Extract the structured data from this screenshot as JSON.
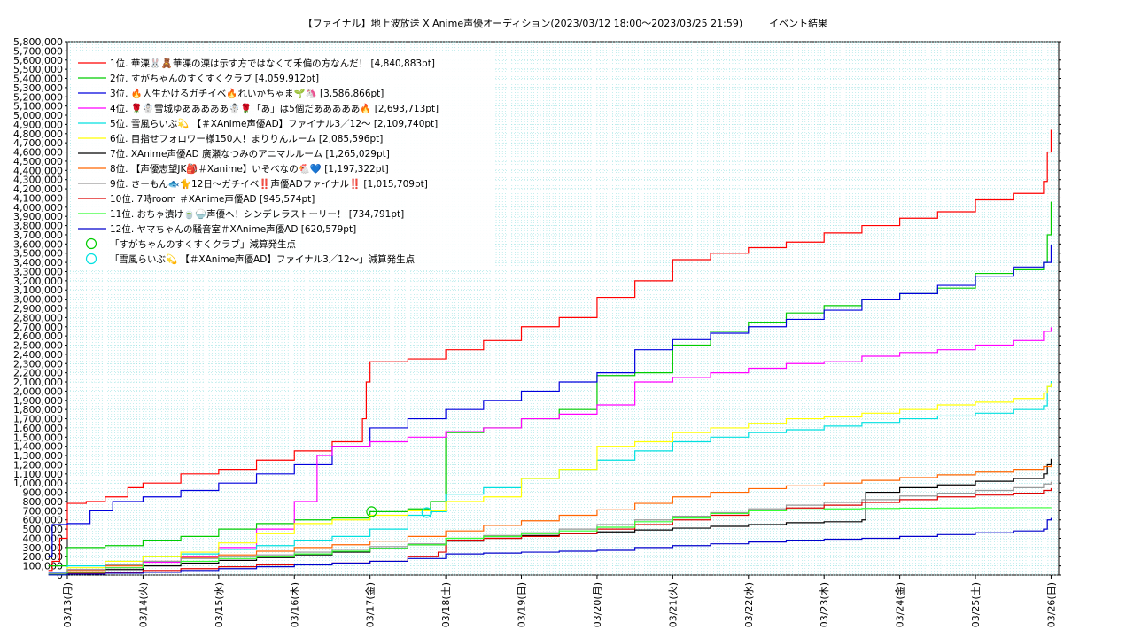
{
  "header": {
    "title": "【ファイナル】地上波放送 X Anime声優オーディション(2023/03/12 18:00〜2023/03/25 21:59)",
    "subtitle": "イベント結果"
  },
  "chart_data": {
    "type": "line",
    "title": "【ファイナル】地上波放送 X Anime声優オーディション(2023/03/12 18:00〜2023/03/25 21:59)",
    "subtitle": "イベント結果",
    "xlabel": "",
    "ylabel": "",
    "x_range": [
      0,
      13.1
    ],
    "ylim": [
      0,
      5800000
    ],
    "y_ticks": [
      0,
      100000,
      200000,
      300000,
      400000,
      500000,
      600000,
      700000,
      800000,
      900000,
      1000000,
      1100000,
      1200000,
      1300000,
      1400000,
      1500000,
      1600000,
      1700000,
      1800000,
      1900000,
      2000000,
      2100000,
      2200000,
      2300000,
      2400000,
      2500000,
      2600000,
      2700000,
      2800000,
      2900000,
      3000000,
      3100000,
      3200000,
      3300000,
      3400000,
      3500000,
      3600000,
      3700000,
      3800000,
      3900000,
      4000000,
      4100000,
      4200000,
      4300000,
      4400000,
      4500000,
      4600000,
      4700000,
      4800000,
      4900000,
      5000000,
      5100000,
      5200000,
      5300000,
      5400000,
      5500000,
      5600000,
      5700000,
      5800000
    ],
    "y_tick_labels": [
      "0",
      "100,000",
      "200,000",
      "300,000",
      "400,000",
      "500,000",
      "600,000",
      "700,000",
      "800,000",
      "900,000",
      "1,000,000",
      "1,100,000",
      "1,200,000",
      "1,300,000",
      "1,400,000",
      "1,500,000",
      "1,600,000",
      "1,700,000",
      "1,800,000",
      "1,900,000",
      "2,000,000",
      "2,100,000",
      "2,200,000",
      "2,300,000",
      "2,400,000",
      "2,500,000",
      "2,600,000",
      "2,700,000",
      "2,800,000",
      "2,900,000",
      "3,000,000",
      "3,100,000",
      "3,200,000",
      "3,300,000",
      "3,400,000",
      "3,500,000",
      "3,600,000",
      "3,700,000",
      "3,800,000",
      "3,900,000",
      "4,000,000",
      "4,100,000",
      "4,200,000",
      "4,300,000",
      "4,400,000",
      "4,500,000",
      "4,600,000",
      "4,700,000",
      "4,800,000",
      "4,900,000",
      "5,000,000",
      "5,100,000",
      "5,200,000",
      "5,300,000",
      "5,400,000",
      "5,500,000",
      "5,600,000",
      "5,700,000",
      "5,800,000"
    ],
    "x_tick_labels": [
      "03/13(月)",
      "03/14(火)",
      "03/15(水)",
      "03/16(木)",
      "03/17(金)",
      "03/18(土)",
      "03/19(日)",
      "03/20(月)",
      "03/21(火)",
      "03/22(水)",
      "03/23(木)",
      "03/24(金)",
      "03/25(土)",
      "03/26(日)"
    ],
    "x_tick_values": [
      0,
      1,
      2,
      3,
      4,
      5,
      6,
      7,
      8,
      9,
      10,
      11,
      12,
      13
    ],
    "grid": true,
    "legend_position": "top-left",
    "series": [
      {
        "name": "1位. 華溧🐰🧸華溧の溧は示す方ではなくて禾偏の方なんだ！ [4,840,883pt]",
        "color": "#ff0000",
        "x": [
          -0.25,
          -0.2,
          -0.1,
          0,
          0.1,
          0.25,
          0.5,
          0.8,
          1,
          1.5,
          2,
          2.5,
          3,
          3.5,
          3.9,
          3.95,
          4,
          4.5,
          5,
          5.5,
          6,
          6.5,
          7,
          7.5,
          8,
          8.5,
          9,
          9.5,
          10,
          10.5,
          11,
          11.5,
          12,
          12.5,
          12.9,
          12.95,
          13
        ],
        "y": [
          50000,
          150000,
          400000,
          780000,
          780000,
          800000,
          850000,
          950000,
          1000000,
          1100000,
          1150000,
          1250000,
          1350000,
          1450000,
          1700000,
          2100000,
          2320000,
          2350000,
          2450000,
          2550000,
          2700000,
          2800000,
          3020000,
          3200000,
          3430000,
          3500000,
          3560000,
          3620000,
          3720000,
          3800000,
          3880000,
          3950000,
          4080000,
          4150000,
          4280000,
          4600000,
          4840883
        ]
      },
      {
        "name": "2位. すがちゃんのすくすくクラブ [4,059,912pt]",
        "color": "#00cc00",
        "x": [
          -0.25,
          0,
          0.5,
          1,
          1.5,
          2,
          2.5,
          3,
          3.5,
          4,
          4.5,
          4.8,
          5,
          5.5,
          6,
          6.5,
          7,
          7.5,
          8,
          8.5,
          9,
          9.5,
          10,
          10.5,
          11,
          11.5,
          12,
          12.5,
          12.9,
          12.95,
          13
        ],
        "y": [
          100000,
          300000,
          320000,
          380000,
          420000,
          500000,
          560000,
          600000,
          620000,
          690000,
          720000,
          800000,
          1550000,
          1600000,
          1700000,
          1800000,
          2170000,
          2200000,
          2500000,
          2650000,
          2750000,
          2850000,
          2930000,
          3000000,
          3060000,
          3120000,
          3280000,
          3320000,
          3400000,
          3700000,
          4059912
        ]
      },
      {
        "name": "3位. 🔥人生かけるガチイベ🔥れいかちゃま🌱🦄 [3,586,866pt]",
        "color": "#0000dd",
        "x": [
          -0.25,
          -0.2,
          0,
          0.3,
          0.6,
          1,
          1.5,
          2,
          2.5,
          3,
          3.5,
          4,
          4.5,
          5,
          5.5,
          6,
          6.5,
          7,
          7.5,
          8,
          8.5,
          9,
          9.5,
          10,
          10.5,
          11,
          11.5,
          12,
          12.5,
          12.9,
          13
        ],
        "y": [
          200000,
          550000,
          560000,
          700000,
          800000,
          850000,
          920000,
          1000000,
          1100000,
          1200000,
          1400000,
          1600000,
          1700000,
          1800000,
          1900000,
          2000000,
          2100000,
          2200000,
          2450000,
          2560000,
          2630000,
          2700000,
          2780000,
          2880000,
          3000000,
          3060000,
          3150000,
          3250000,
          3350000,
          3400000,
          3586866
        ]
      },
      {
        "name": "4位. 🌹☃️雪城ゆあああああ☃️🌹「あ」は5個だあああああ🔥 [2,693,713pt]",
        "color": "#ff00ff",
        "x": [
          -0.25,
          0,
          0.5,
          1,
          1.5,
          2,
          2.5,
          3,
          3.3,
          3.5,
          4,
          4.5,
          5,
          5.5,
          6,
          6.5,
          7,
          7.5,
          8,
          8.5,
          9,
          9.5,
          10,
          10.5,
          11,
          11.5,
          12,
          12.5,
          12.9,
          13
        ],
        "y": [
          30000,
          60000,
          80000,
          140000,
          200000,
          300000,
          500000,
          800000,
          1300000,
          1400000,
          1450000,
          1500000,
          1560000,
          1600000,
          1700000,
          1750000,
          1850000,
          2100000,
          2150000,
          2200000,
          2250000,
          2300000,
          2320000,
          2380000,
          2420000,
          2450000,
          2500000,
          2550000,
          2650000,
          2693713
        ]
      },
      {
        "name": "5位. 雪風らいぶ💫 【＃XAnime声優AD】ファイナル3／12～ [2,109,740pt]",
        "color": "#00e0e0",
        "x": [
          -0.25,
          0,
          0.5,
          1,
          1.5,
          2,
          2.5,
          3,
          3.5,
          4,
          4.5,
          4.8,
          5,
          5.5,
          6,
          6.5,
          7,
          7.5,
          8,
          8.5,
          9,
          9.5,
          10,
          10.5,
          11,
          11.5,
          12,
          12.5,
          12.9,
          12.95,
          13
        ],
        "y": [
          20000,
          100000,
          150000,
          200000,
          230000,
          280000,
          320000,
          380000,
          420000,
          500000,
          650000,
          690000,
          880000,
          950000,
          1050000,
          1150000,
          1250000,
          1350000,
          1450000,
          1500000,
          1550000,
          1580000,
          1620000,
          1660000,
          1700000,
          1730000,
          1760000,
          1800000,
          1840000,
          2050000,
          2109740
        ]
      },
      {
        "name": "6位. 目指せフォロワー様150人！まりりんルーム [2,085,596pt]",
        "color": "#ffff00",
        "x": [
          -0.25,
          0,
          0.5,
          1,
          1.5,
          2,
          2.5,
          3,
          3.5,
          4,
          4.5,
          5,
          5.5,
          6,
          6.5,
          7,
          7.5,
          8,
          8.5,
          9,
          9.5,
          10,
          10.5,
          11,
          11.5,
          12,
          12.5,
          12.9,
          12.95,
          13
        ],
        "y": [
          10000,
          80000,
          150000,
          200000,
          250000,
          350000,
          450000,
          560000,
          600000,
          650000,
          700000,
          800000,
          850000,
          1050000,
          1150000,
          1400000,
          1450000,
          1550000,
          1600000,
          1650000,
          1700000,
          1720000,
          1760000,
          1800000,
          1850000,
          1880000,
          1920000,
          1980000,
          2050000,
          2085596
        ]
      },
      {
        "name": "7位. XAnime声優AD 廣瀬なつみのアニマルルーム [1,265,029pt]",
        "color": "#000000",
        "x": [
          -0.25,
          0,
          0.5,
          1,
          1.5,
          2,
          2.5,
          3,
          3.5,
          4,
          4.5,
          5,
          5.5,
          6,
          6.5,
          7,
          7.5,
          8,
          8.5,
          9,
          9.5,
          10,
          10.5,
          10.55,
          11,
          11.5,
          12,
          12.5,
          12.9,
          12.95,
          13
        ],
        "y": [
          5000,
          30000,
          60000,
          100000,
          130000,
          160000,
          190000,
          220000,
          250000,
          290000,
          330000,
          370000,
          400000,
          430000,
          450000,
          470000,
          490000,
          510000,
          530000,
          550000,
          570000,
          580000,
          600000,
          900000,
          950000,
          980000,
          1020000,
          1050000,
          1100000,
          1200000,
          1265029
        ]
      },
      {
        "name": "8位. 【声優志望JK🎒＃Xanime】いそべなの🐔💙 [1,197,322pt]",
        "color": "#ff6600",
        "x": [
          -0.25,
          0,
          0.5,
          1,
          1.5,
          2,
          2.5,
          3,
          3.5,
          4,
          4.5,
          5,
          5.5,
          6,
          6.5,
          7,
          7.5,
          8,
          8.5,
          9,
          9.5,
          10,
          10.5,
          11,
          11.5,
          12,
          12.5,
          12.9,
          13
        ],
        "y": [
          10000,
          50000,
          100000,
          150000,
          190000,
          220000,
          260000,
          300000,
          330000,
          370000,
          420000,
          480000,
          540000,
          590000,
          650000,
          710000,
          780000,
          850000,
          900000,
          940000,
          970000,
          1000000,
          1030000,
          1060000,
          1090000,
          1120000,
          1150000,
          1180000,
          1197322
        ]
      },
      {
        "name": "9位. さーもん🐟🐈12日〜ガチイベ‼️声優ADファイナル‼️ [1,015,709pt]",
        "color": "#999999",
        "x": [
          -0.25,
          0,
          0.5,
          1,
          1.5,
          2,
          2.5,
          3,
          3.5,
          4,
          4.5,
          5,
          5.5,
          6,
          6.5,
          7,
          7.5,
          8,
          8.5,
          9,
          9.5,
          10,
          10.5,
          11,
          11.5,
          12,
          12.5,
          12.9,
          13
        ],
        "y": [
          10000,
          60000,
          110000,
          150000,
          180000,
          200000,
          220000,
          250000,
          280000,
          310000,
          340000,
          400000,
          430000,
          460000,
          500000,
          550000,
          600000,
          640000,
          680000,
          720000,
          760000,
          790000,
          820000,
          860000,
          890000,
          920000,
          950000,
          990000,
          1015709
        ]
      },
      {
        "name": "10位. 7時room ＃XAnime声優AD [945,574pt]",
        "color": "#dd0000",
        "x": [
          -0.25,
          0,
          0.5,
          1,
          1.5,
          2,
          2.5,
          3,
          3.5,
          4,
          4.5,
          4.9,
          5,
          5.5,
          6,
          6.5,
          7,
          7.5,
          8,
          8.5,
          9,
          9.5,
          10,
          10.5,
          11,
          11.5,
          12,
          12.5,
          12.9,
          13
        ],
        "y": [
          5000,
          20000,
          30000,
          50000,
          70000,
          90000,
          110000,
          120000,
          130000,
          150000,
          200000,
          250000,
          380000,
          400000,
          420000,
          450000,
          500000,
          550000,
          600000,
          650000,
          700000,
          730000,
          760000,
          790000,
          820000,
          850000,
          870000,
          890000,
          920000,
          945574
        ]
      },
      {
        "name": "11位. おちゃ漬け🍵🍚声優へ！シンデレラストーリー！ [734,791pt]",
        "color": "#33ff33",
        "x": [
          -0.25,
          0,
          0.5,
          1,
          1.5,
          2,
          2.5,
          3,
          3.5,
          4,
          4.5,
          5,
          5.5,
          6,
          6.5,
          7,
          7.5,
          8,
          8.5,
          9,
          9.5,
          10,
          10.5,
          11,
          11.5,
          12,
          12.5,
          13
        ],
        "y": [
          5000,
          30000,
          80000,
          120000,
          150000,
          180000,
          200000,
          230000,
          260000,
          290000,
          330000,
          400000,
          420000,
          450000,
          480000,
          520000,
          580000,
          620000,
          670000,
          700000,
          710000,
          720000,
          725000,
          728000,
          730000,
          732000,
          733000,
          734791
        ]
      },
      {
        "name": "12位. ヤマちゃんの騒音室＃XAnime声優AD [620,579pt]",
        "color": "#0000cc",
        "x": [
          -0.25,
          0,
          0.5,
          1,
          1.5,
          2,
          2.5,
          3,
          3.5,
          4,
          4.5,
          5,
          5.5,
          6,
          6.5,
          7,
          7.5,
          8,
          8.5,
          9,
          9.5,
          10,
          10.5,
          11,
          11.5,
          12,
          12.5,
          12.9,
          12.95,
          13
        ],
        "y": [
          2000,
          10000,
          20000,
          30000,
          50000,
          70000,
          90000,
          110000,
          130000,
          150000,
          180000,
          230000,
          240000,
          250000,
          260000,
          270000,
          300000,
          320000,
          340000,
          360000,
          380000,
          390000,
          400000,
          420000,
          440000,
          460000,
          480000,
          500000,
          600000,
          620579
        ]
      }
    ],
    "markers": [
      {
        "name": "「すがちゃんのすくすくクラブ」減算発生点",
        "color": "#00cc00",
        "x": 4.02,
        "y": 690000
      },
      {
        "name": "「雪風らいぶ💫 【＃XAnime声優AD】ファイナル3／12〜」減算発生点",
        "color": "#00e0e0",
        "x": 4.75,
        "y": 680000
      }
    ]
  }
}
